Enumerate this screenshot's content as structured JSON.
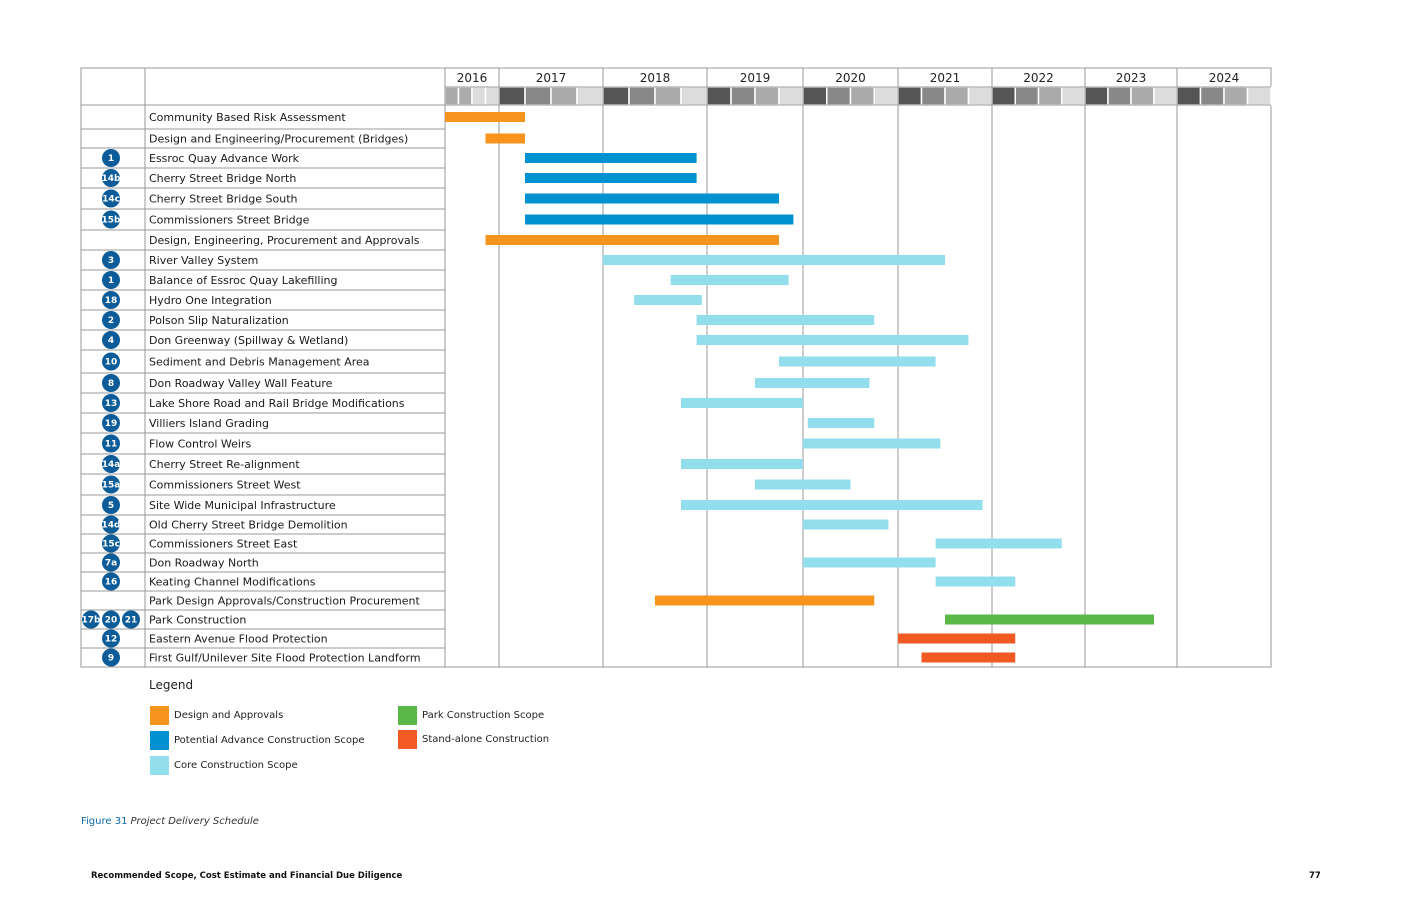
{
  "chart_data": {
    "type": "gantt",
    "title": "",
    "years": [
      "2016",
      "2017",
      "2018",
      "2019",
      "2020",
      "2021",
      "2022",
      "2023",
      "2024"
    ],
    "colors": {
      "design": "#f7941d",
      "advance": "#0092d0",
      "core": "#93deed",
      "park": "#59b848",
      "standalone": "#f15a22",
      "badge": "#0b5c98"
    },
    "tasks": [
      {
        "badges": [],
        "label": "Community Based Risk Assessment",
        "cat": "design",
        "start": 2016.0,
        "end": 2017.25
      },
      {
        "badges": [],
        "label": "Design and Engineering/Procurement (Bridges)",
        "cat": "design",
        "start": 2016.75,
        "end": 2017.25
      },
      {
        "badges": [
          "1"
        ],
        "label": "Essroc Quay Advance Work",
        "cat": "advance",
        "start": 2017.25,
        "end": 2018.9
      },
      {
        "badges": [
          "14b"
        ],
        "label": "Cherry Street Bridge North",
        "cat": "advance",
        "start": 2017.25,
        "end": 2018.9
      },
      {
        "badges": [
          "14c"
        ],
        "label": "Cherry Street Bridge South",
        "cat": "advance",
        "start": 2017.25,
        "end": 2019.75
      },
      {
        "badges": [
          "15b"
        ],
        "label": "Commissioners Street Bridge",
        "cat": "advance",
        "start": 2017.25,
        "end": 2019.9
      },
      {
        "badges": [],
        "label": "Design, Engineering, Procurement and Approvals",
        "cat": "design",
        "start": 2016.75,
        "end": 2019.75
      },
      {
        "badges": [
          "3"
        ],
        "label": "River Valley System",
        "cat": "core",
        "start": 2018.0,
        "end": 2021.5
      },
      {
        "badges": [
          "1"
        ],
        "label": "Balance of Essroc Quay Lakefilling",
        "cat": "core",
        "start": 2018.65,
        "end": 2019.85
      },
      {
        "badges": [
          "18"
        ],
        "label": "Hydro One Integration",
        "cat": "core",
        "start": 2018.3,
        "end": 2018.95
      },
      {
        "badges": [
          "2"
        ],
        "label": "Polson Slip Naturalization",
        "cat": "core",
        "start": 2018.9,
        "end": 2020.75
      },
      {
        "badges": [
          "4"
        ],
        "label": "Don Greenway (Spillway & Wetland)",
        "cat": "core",
        "start": 2018.9,
        "end": 2021.75
      },
      {
        "badges": [
          "10"
        ],
        "label": "Sediment and Debris Management Area",
        "cat": "core",
        "start": 2019.75,
        "end": 2021.4
      },
      {
        "badges": [
          "8"
        ],
        "label": "Don Roadway Valley Wall Feature",
        "cat": "core",
        "start": 2019.5,
        "end": 2020.7
      },
      {
        "badges": [
          "13"
        ],
        "label": "Lake Shore Road and Rail Bridge Modifications",
        "cat": "core",
        "start": 2018.75,
        "end": 2020.0
      },
      {
        "badges": [
          "19"
        ],
        "label": "Villiers Island Grading",
        "cat": "core",
        "start": 2020.05,
        "end": 2020.75
      },
      {
        "badges": [
          "11"
        ],
        "label": "Flow Control Weirs",
        "cat": "core",
        "start": 2020.0,
        "end": 2021.45
      },
      {
        "badges": [
          "14a"
        ],
        "label": "Cherry Street Re-alignment",
        "cat": "core",
        "start": 2018.75,
        "end": 2020.0
      },
      {
        "badges": [
          "15a"
        ],
        "label": "Commissioners Street West",
        "cat": "core",
        "start": 2019.5,
        "end": 2020.5
      },
      {
        "badges": [
          "5"
        ],
        "label": "Site Wide Municipal Infrastructure",
        "cat": "core",
        "start": 2018.75,
        "end": 2021.9
      },
      {
        "badges": [
          "14d"
        ],
        "label": "Old Cherry Street Bridge Demolition",
        "cat": "core",
        "start": 2020.0,
        "end": 2020.9
      },
      {
        "badges": [
          "15c"
        ],
        "label": "Commissioners Street East",
        "cat": "core",
        "start": 2021.4,
        "end": 2022.75
      },
      {
        "badges": [
          "7a"
        ],
        "label": "Don Roadway North",
        "cat": "core",
        "start": 2020.0,
        "end": 2021.4
      },
      {
        "badges": [
          "16"
        ],
        "label": "Keating Channel Modifications",
        "cat": "core",
        "start": 2021.4,
        "end": 2022.25
      },
      {
        "badges": [],
        "label": "Park Design Approvals/Construction Procurement",
        "cat": "design",
        "start": 2018.5,
        "end": 2020.75
      },
      {
        "badges": [
          "17b",
          "20",
          "21"
        ],
        "label": "Park Construction",
        "cat": "park",
        "start": 2021.5,
        "end": 2023.75
      },
      {
        "badges": [
          "12"
        ],
        "label": "Eastern Avenue Flood Protection",
        "cat": "standalone",
        "start": 2021.0,
        "end": 2022.25
      },
      {
        "badges": [
          "9"
        ],
        "label": "First Gulf/Unilever Site Flood Protection Landform",
        "cat": "standalone",
        "start": 2021.25,
        "end": 2022.25
      }
    ],
    "legend": [
      {
        "label": "Design and Approvals",
        "cat": "design"
      },
      {
        "label": "Potential Advance Construction Scope",
        "cat": "advance"
      },
      {
        "label": "Core Construction Scope",
        "cat": "core"
      },
      {
        "label": "Park Construction Scope",
        "cat": "park"
      },
      {
        "label": "Stand-alone Construction",
        "cat": "standalone"
      }
    ]
  },
  "legend_title": "Legend",
  "caption": {
    "number": "Figure 31",
    "title": "Project Delivery Schedule"
  },
  "footer": {
    "left": "Recommended Scope, Cost Estimate and Financial Due Diligence",
    "page": "77"
  }
}
